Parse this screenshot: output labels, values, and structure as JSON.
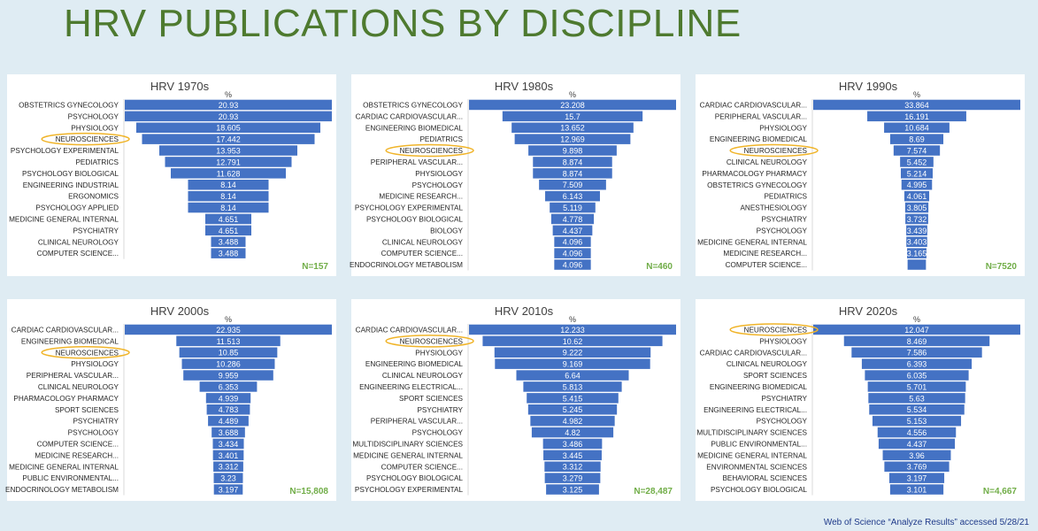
{
  "title": "HRV PUBLICATIONS BY DISCIPLINE",
  "source_note": "Web of Science “Analyze Results” accessed 5/28/21",
  "colors": {
    "bar": "#4472c4",
    "highlight": "#f0b429",
    "n_label": "#70ad47",
    "title": "#4e7a2f"
  },
  "chart_data": [
    {
      "type": "bar",
      "title": "HRV 1970s",
      "unit_label": "%",
      "n_label": "N=157",
      "categories": [
        "OBSTETRICS GYNECOLOGY",
        "PSYCHOLOGY",
        "PHYSIOLOGY",
        "NEUROSCIENCES",
        "PSYCHOLOGY EXPERIMENTAL",
        "PEDIATRICS",
        "PSYCHOLOGY BIOLOGICAL",
        "ENGINEERING INDUSTRIAL",
        "ERGONOMICS",
        "PSYCHOLOGY APPLIED",
        "MEDICINE GENERAL INTERNAL",
        "PSYCHIATRY",
        "CLINICAL NEUROLOGY",
        "COMPUTER SCIENCE..."
      ],
      "values": [
        20.93,
        20.93,
        18.605,
        17.442,
        13.953,
        12.791,
        11.628,
        8.14,
        8.14,
        8.14,
        4.651,
        4.651,
        3.488,
        3.488
      ],
      "value_labels": [
        "20.93",
        "20.93",
        "18.605",
        "17.442",
        "13.953",
        "12.791",
        "11.628",
        "8.14",
        "8.14",
        "8.14",
        "4.651",
        "4.651",
        "3.488",
        "3.488"
      ],
      "highlight_category": "NEUROSCIENCES"
    },
    {
      "type": "bar",
      "title": "HRV 1980s",
      "unit_label": "%",
      "n_label": "N=460",
      "categories": [
        "OBSTETRICS GYNECOLOGY",
        "CARDIAC CARDIOVASCULAR...",
        "ENGINEERING BIOMEDICAL",
        "PEDIATRICS",
        "NEUROSCIENCES",
        "PERIPHERAL VASCULAR...",
        "PHYSIOLOGY",
        "PSYCHOLOGY",
        "MEDICINE RESEARCH...",
        "PSYCHOLOGY EXPERIMENTAL",
        "PSYCHOLOGY BIOLOGICAL",
        "BIOLOGY",
        "CLINICAL NEUROLOGY",
        "COMPUTER SCIENCE...",
        "ENDOCRINOLOGY METABOLISM"
      ],
      "values": [
        23.208,
        15.7,
        13.652,
        12.969,
        9.898,
        8.874,
        8.874,
        7.509,
        6.143,
        5.119,
        4.778,
        4.437,
        4.096,
        4.096,
        4.096
      ],
      "value_labels": [
        "23.208",
        "15.7",
        "13.652",
        "12.969",
        "9.898",
        "8.874",
        "8.874",
        "7.509",
        "6.143",
        "5.119",
        "4.778",
        "4.437",
        "4.096",
        "4.096",
        "4.096"
      ],
      "highlight_category": "NEUROSCIENCES"
    },
    {
      "type": "bar",
      "title": "HRV 1990s",
      "unit_label": "%",
      "n_label": "N=7520",
      "categories": [
        "CARDIAC CARDIOVASCULAR...",
        "PERIPHERAL VASCULAR...",
        "PHYSIOLOGY",
        "ENGINEERING BIOMEDICAL",
        "NEUROSCIENCES",
        "CLINICAL NEUROLOGY",
        "PHARMACOLOGY PHARMACY",
        "OBSTETRICS GYNECOLOGY",
        "PEDIATRICS",
        "ANESTHESIOLOGY",
        "PSYCHIATRY",
        "PSYCHOLOGY",
        "MEDICINE GENERAL INTERNAL",
        "MEDICINE RESEARCH...",
        "COMPUTER SCIENCE..."
      ],
      "values": [
        33.864,
        16.191,
        10.684,
        8.69,
        7.574,
        5.452,
        5.214,
        4.995,
        4.061,
        3.805,
        3.732,
        3.439,
        3.403,
        3.165,
        3.0
      ],
      "value_labels": [
        "33.864",
        "16.191",
        "10.684",
        "8.69",
        "7.574",
        "5.452",
        "5.214",
        "4.995",
        "4.061",
        "3.805",
        "3.732",
        "3.439",
        "3.403",
        "3.165",
        ""
      ],
      "highlight_category": "NEUROSCIENCES"
    },
    {
      "type": "bar",
      "title": "HRV 2000s",
      "unit_label": "%",
      "n_label": "N=15,808",
      "categories": [
        "CARDIAC CARDIOVASCULAR...",
        "ENGINEERING BIOMEDICAL",
        "NEUROSCIENCES",
        "PHYSIOLOGY",
        "PERIPHERAL VASCULAR...",
        "CLINICAL NEUROLOGY",
        "PHARMACOLOGY PHARMACY",
        "SPORT SCIENCES",
        "PSYCHIATRY",
        "PSYCHOLOGY",
        "COMPUTER SCIENCE...",
        "MEDICINE RESEARCH...",
        "MEDICINE GENERAL INTERNAL",
        "PUBLIC ENVIRONMENTAL...",
        "ENDOCRINOLOGY METABOLISM"
      ],
      "values": [
        22.935,
        11.513,
        10.85,
        10.286,
        9.959,
        6.353,
        4.939,
        4.783,
        4.489,
        3.688,
        3.434,
        3.401,
        3.312,
        3.23,
        3.197
      ],
      "value_labels": [
        "22.935",
        "11.513",
        "10.85",
        "10.286",
        "9.959",
        "6.353",
        "4.939",
        "4.783",
        "4.489",
        "3.688",
        "3.434",
        "3.401",
        "3.312",
        "3.23",
        "3.197"
      ],
      "highlight_category": "NEUROSCIENCES"
    },
    {
      "type": "bar",
      "title": "HRV 2010s",
      "unit_label": "%",
      "n_label": "N=28,487",
      "categories": [
        "CARDIAC CARDIOVASCULAR...",
        "NEUROSCIENCES",
        "PHYSIOLOGY",
        "ENGINEERING BIOMEDICAL",
        "CLINICAL NEUROLOGY",
        "ENGINEERING ELECTRICAL...",
        "SPORT SCIENCES",
        "PSYCHIATRY",
        "PERIPHERAL VASCULAR...",
        "PSYCHOLOGY",
        "MULTIDISCIPLINARY SCIENCES",
        "MEDICINE GENERAL INTERNAL",
        "COMPUTER SCIENCE...",
        "PSYCHOLOGY BIOLOGICAL",
        "PSYCHOLOGY EXPERIMENTAL"
      ],
      "values": [
        12.233,
        10.62,
        9.222,
        9.169,
        6.64,
        5.813,
        5.415,
        5.245,
        4.982,
        4.82,
        3.486,
        3.445,
        3.312,
        3.279,
        3.125
      ],
      "value_labels": [
        "12.233",
        "10.62",
        "9.222",
        "9.169",
        "6.64",
        "5.813",
        "5.415",
        "5.245",
        "4.982",
        "4.82",
        "3.486",
        "3.445",
        "3.312",
        "3.279",
        "3.125"
      ],
      "highlight_category": "NEUROSCIENCES"
    },
    {
      "type": "bar",
      "title": "HRV 2020s",
      "unit_label": "%",
      "n_label": "N=4,667",
      "categories": [
        "NEUROSCIENCES",
        "PHYSIOLOGY",
        "CARDIAC CARDIOVASCULAR...",
        "CLINICAL NEUROLOGY",
        "SPORT SCIENCES",
        "ENGINEERING BIOMEDICAL",
        "PSYCHIATRY",
        "ENGINEERING ELECTRICAL...",
        "PSYCHOLOGY",
        "MULTIDISCIPLINARY SCIENCES",
        "PUBLIC ENVIRONMENTAL...",
        "MEDICINE GENERAL INTERNAL",
        "ENVIRONMENTAL SCIENCES",
        "BEHAVIORAL SCIENCES",
        "PSYCHOLOGY BIOLOGICAL"
      ],
      "values": [
        12.047,
        8.469,
        7.586,
        6.393,
        6.035,
        5.701,
        5.63,
        5.534,
        5.153,
        4.556,
        4.437,
        3.96,
        3.769,
        3.197,
        3.101
      ],
      "value_labels": [
        "12.047",
        "8.469",
        "7.586",
        "6.393",
        "6.035",
        "5.701",
        "5.63",
        "5.534",
        "5.153",
        "4.556",
        "4.437",
        "3.96",
        "3.769",
        "3.197",
        "3.101"
      ],
      "highlight_category": "NEUROSCIENCES"
    }
  ]
}
